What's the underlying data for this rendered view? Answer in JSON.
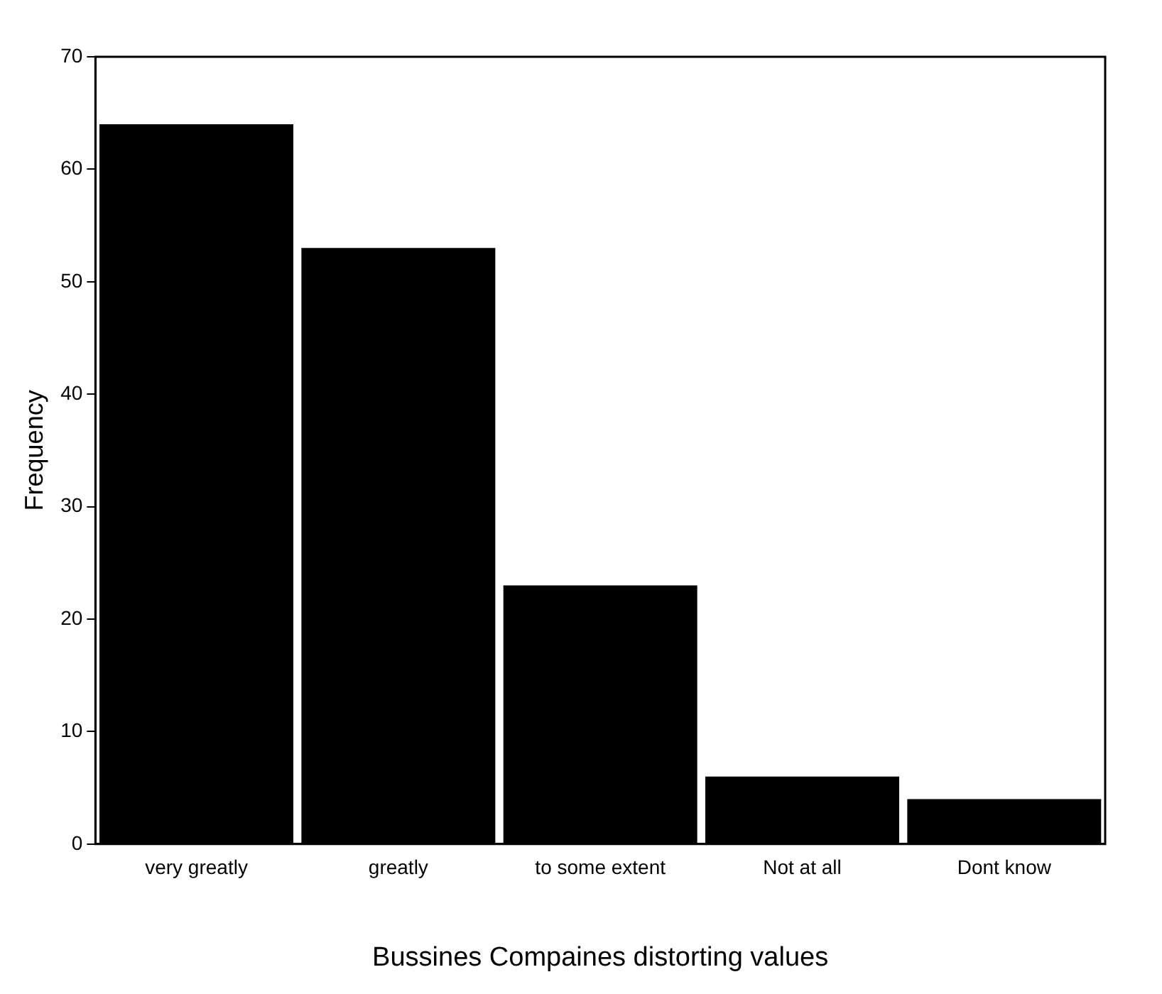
{
  "chart_data": {
    "type": "bar",
    "xlabel": "Bussines Compaines distorting values",
    "ylabel": "Frequency",
    "categories": [
      "very greatly",
      "greatly",
      "to some extent",
      "Not at all",
      "Dont know"
    ],
    "values": [
      64,
      53,
      23,
      6,
      4
    ],
    "color": "#000000",
    "ylim": [
      0,
      70
    ],
    "yticks": [
      0,
      10,
      20,
      30,
      40,
      50,
      60,
      70
    ],
    "grid": false
  }
}
